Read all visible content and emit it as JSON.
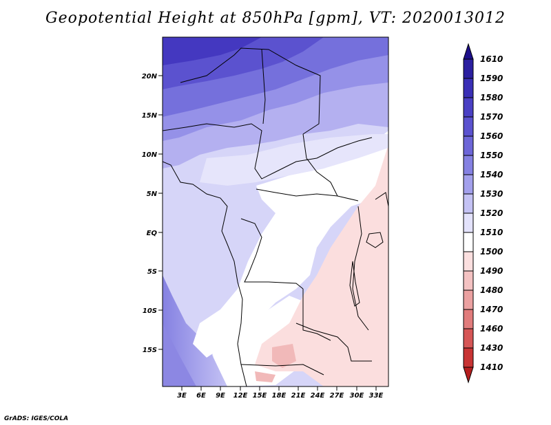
{
  "title": "Geopotential Height at 850hPa [gpm], VT: 2020013012",
  "credit": "GrADS: IGES/COLA",
  "map": {
    "lat_labels": [
      "20N",
      "15N",
      "10N",
      "5N",
      "EQ",
      "5S",
      "10S",
      "15S"
    ],
    "lon_labels": [
      "3E",
      "6E",
      "9E",
      "12E",
      "15E",
      "18E",
      "21E",
      "24E",
      "27E",
      "30E",
      "33E"
    ]
  },
  "colorbar": {
    "levels": [
      "1610",
      "1590",
      "1580",
      "1570",
      "1560",
      "1550",
      "1540",
      "1530",
      "1520",
      "1510",
      "1500",
      "1490",
      "1480",
      "1470",
      "1460",
      "1430",
      "1410"
    ],
    "colors": [
      "#1d0f8a",
      "#2b1fa0",
      "#3a2fb6",
      "#4a40c4",
      "#5b52cf",
      "#6d66d8",
      "#8581e2",
      "#a3a0ec",
      "#c4c2f4",
      "#e3e2fb",
      "#ffffff",
      "#fbdfdf",
      "#f4c2c2",
      "#eba1a1",
      "#e17c7c",
      "#d65656",
      "#c83434",
      "#b51e1e"
    ]
  }
}
